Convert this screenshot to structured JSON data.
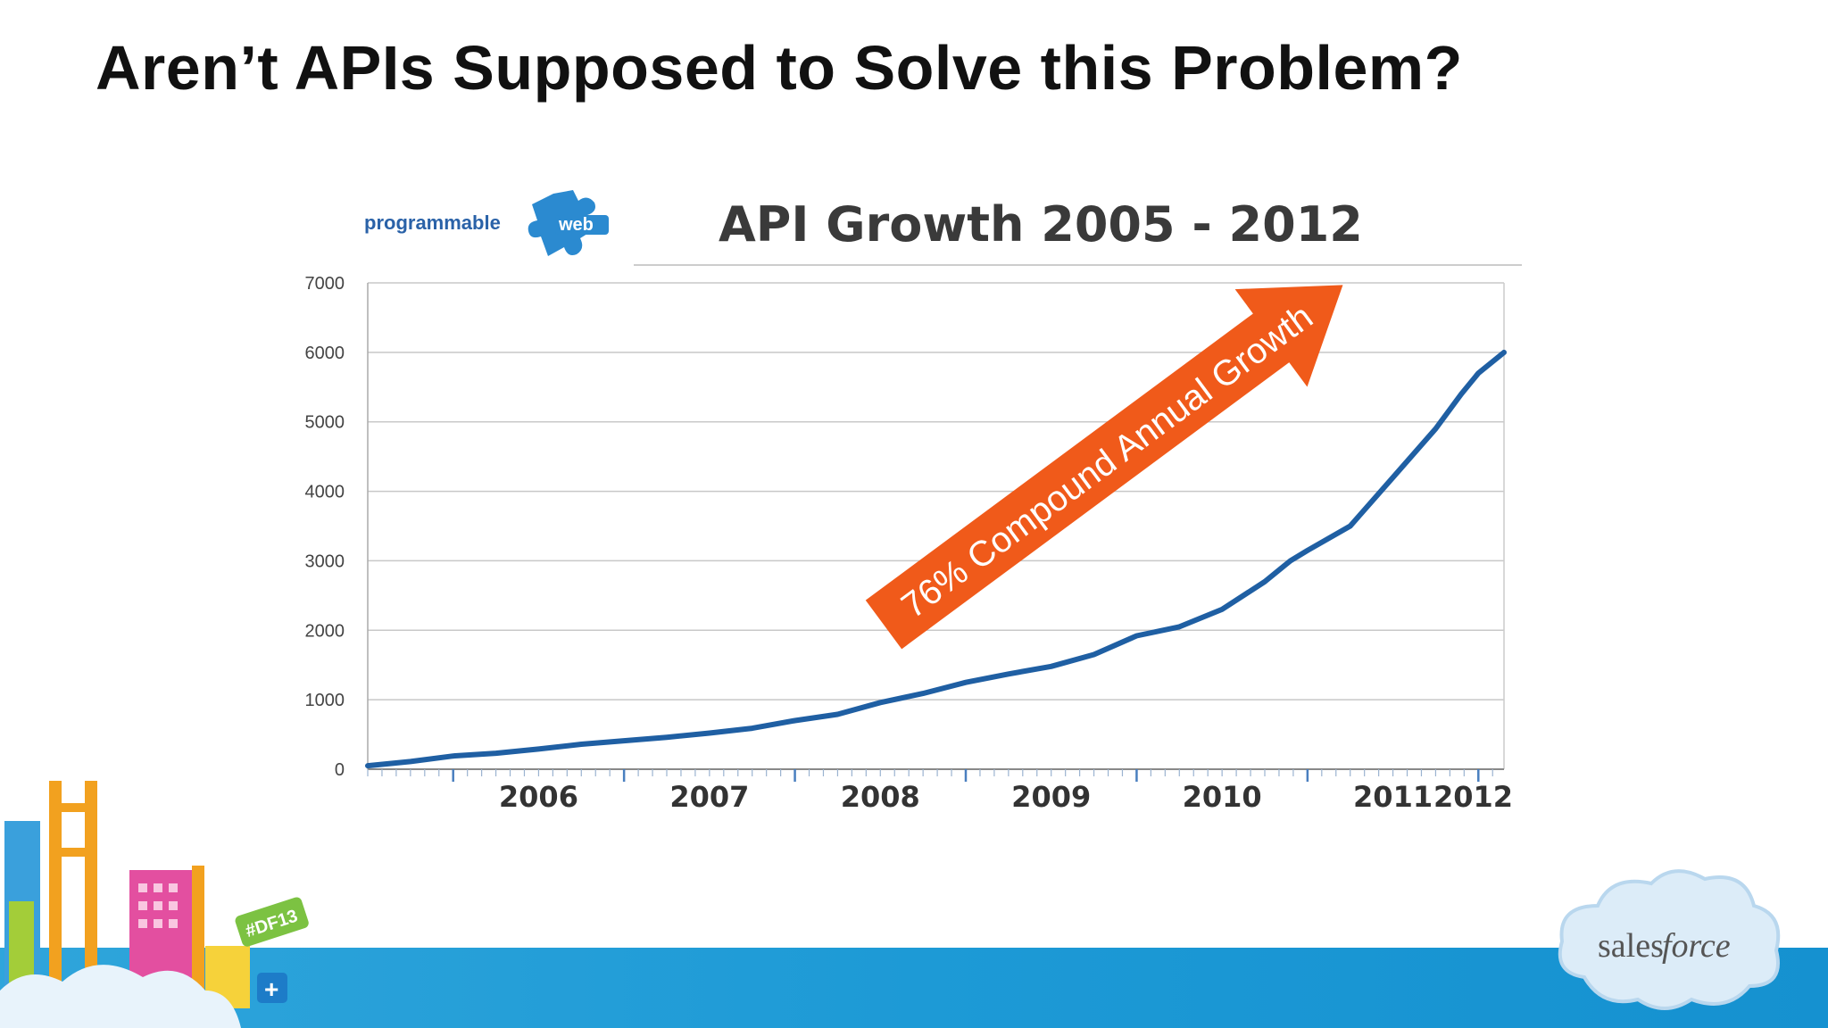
{
  "slide": {
    "title": "Aren’t APIs Supposed to Solve this Problem?"
  },
  "logos": {
    "source_logo_text_a": "programmable",
    "source_logo_text_b": "web",
    "badge_text": "#DF13",
    "badge_plus": "+",
    "brand_text_a": "sales",
    "brand_text_b": "force"
  },
  "annotation": {
    "text": "76% Compound Annual Growth",
    "color": "#f05a1a"
  },
  "colors": {
    "line": "#1f5fa3",
    "grid": "#c8c8c8",
    "band": "#1d9ad6"
  },
  "chart_data": {
    "type": "line",
    "title": "API Growth 2005 - 2012",
    "xlabel": "",
    "ylabel": "",
    "xlim": [
      2005.5,
      2012.15
    ],
    "ylim": [
      0,
      7000
    ],
    "y_ticks": [
      "0",
      "1000",
      "2000",
      "3000",
      "4000",
      "5000",
      "6000",
      "7000"
    ],
    "x_ticks": [
      "2006",
      "2007",
      "2008",
      "2009",
      "2010",
      "2011",
      "2012"
    ],
    "grid": true,
    "series": [
      {
        "x": [
          2005.5,
          2005.75,
          2006.0,
          2006.25,
          2006.5,
          2006.75,
          2007.0,
          2007.25,
          2007.5,
          2007.75,
          2008.0,
          2008.25,
          2008.5,
          2008.75,
          2009.0,
          2009.25,
          2009.5,
          2009.75,
          2010.0,
          2010.25,
          2010.5,
          2010.75,
          2010.9,
          2011.0,
          2011.25,
          2011.5,
          2011.75,
          2011.9,
          2012.0,
          2012.15
        ],
        "y": [
          50,
          110,
          190,
          230,
          290,
          360,
          410,
          460,
          520,
          590,
          700,
          790,
          960,
          1090,
          1250,
          1370,
          1480,
          1650,
          1920,
          2050,
          2300,
          2700,
          3000,
          3150,
          3500,
          4200,
          4900,
          5400,
          5700,
          6000
        ]
      }
    ]
  }
}
